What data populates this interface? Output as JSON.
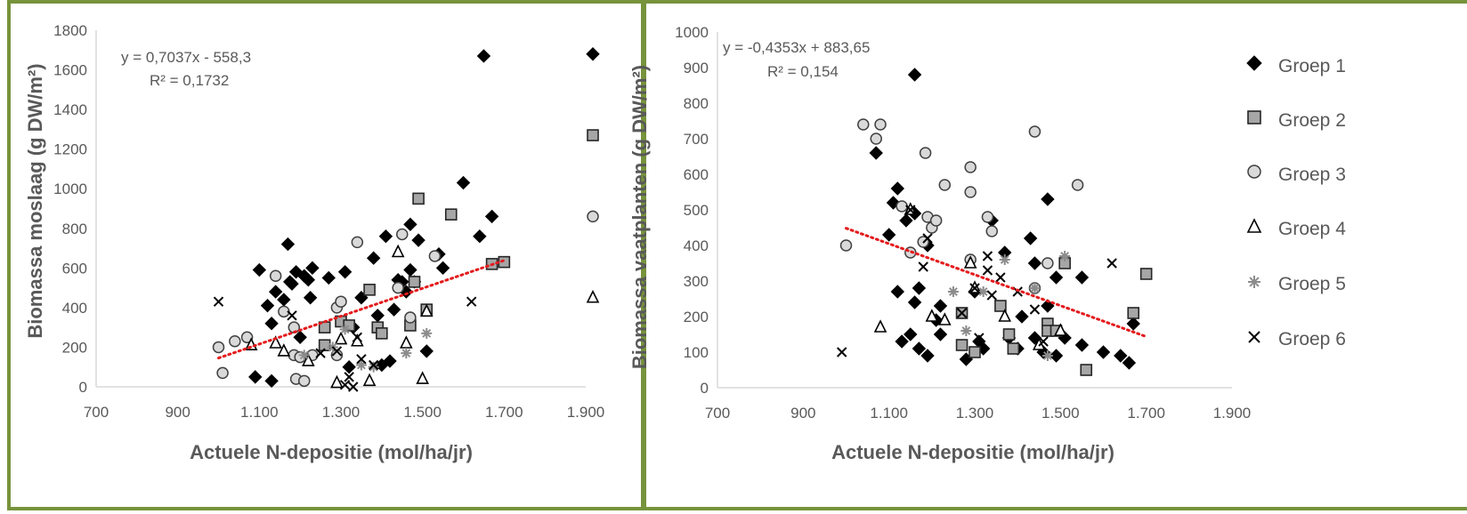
{
  "colors": {
    "panel_border": "#77933C",
    "marker_fill_g1": "#000000",
    "marker_fill_g2": "#a6a6a6",
    "marker_fill_g3": "#d9d9d9",
    "marker_g5": "#8c8c8c",
    "trendline": "#e41a1c",
    "axis": "#d9d9d9",
    "text": "#595959"
  },
  "legend_labels": [
    "Groep 1",
    "Groep 2",
    "Groep 3",
    "Groep 4",
    "Groep 5",
    "Groep 6"
  ],
  "chart_data": [
    {
      "type": "scatter",
      "title": "",
      "xlabel": "Actuele N-depositie (mol/ha/jr)",
      "ylabel": "Biomassa moslaag (g DW/m²)",
      "xlim": [
        700,
        1900
      ],
      "ylim": [
        0,
        1800
      ],
      "xticks": [
        700,
        900,
        1100,
        1300,
        1500,
        1700,
        1900
      ],
      "xtick_labels": [
        "700",
        "900",
        "1.100",
        "1.300",
        "1.500",
        "1.700",
        "1.900"
      ],
      "yticks": [
        0,
        200,
        400,
        600,
        800,
        1000,
        1200,
        1400,
        1600,
        1800
      ],
      "grid": false,
      "legend": "none",
      "trendline": {
        "slope": 0.7037,
        "intercept": -558.3,
        "x_range": [
          1000,
          1700
        ],
        "equation": "y = 0,7037x - 558,3",
        "r2": "R² = 0,1732"
      },
      "series": [
        {
          "name": "Groep 1",
          "marker": "diamond",
          "points": [
            [
              1100,
              590
            ],
            [
              1120,
              410
            ],
            [
              1130,
              320
            ],
            [
              1140,
              480
            ],
            [
              1160,
              440
            ],
            [
              1170,
              720
            ],
            [
              1175,
              530
            ],
            [
              1180,
              520
            ],
            [
              1190,
              580
            ],
            [
              1200,
              250
            ],
            [
              1210,
              560
            ],
            [
              1220,
              540
            ],
            [
              1225,
              450
            ],
            [
              1230,
              600
            ],
            [
              1270,
              550
            ],
            [
              1310,
              580
            ],
            [
              1330,
              300
            ],
            [
              1350,
              450
            ],
            [
              1380,
              650
            ],
            [
              1390,
              360
            ],
            [
              1410,
              760
            ],
            [
              1430,
              390
            ],
            [
              1440,
              540
            ],
            [
              1450,
              530
            ],
            [
              1460,
              480
            ],
            [
              1470,
              590
            ],
            [
              1470,
              820
            ],
            [
              1480,
              530
            ],
            [
              1490,
              740
            ],
            [
              1510,
              180
            ],
            [
              1540,
              670
            ],
            [
              1550,
              600
            ],
            [
              1600,
              1030
            ],
            [
              1640,
              760
            ],
            [
              1650,
              1670
            ],
            [
              1670,
              860
            ],
            [
              1320,
              100
            ],
            [
              1400,
              110
            ],
            [
              1420,
              130
            ],
            [
              1130,
              30
            ],
            [
              1090,
              50
            ]
          ]
        },
        {
          "name": "Groep 2",
          "marker": "square",
          "points": [
            [
              1260,
              300
            ],
            [
              1260,
              210
            ],
            [
              1300,
              330
            ],
            [
              1320,
              310
            ],
            [
              1370,
              490
            ],
            [
              1390,
              300
            ],
            [
              1400,
              270
            ],
            [
              1470,
              310
            ],
            [
              1480,
              530
            ],
            [
              1490,
              950
            ],
            [
              1510,
              390
            ],
            [
              1570,
              870
            ],
            [
              1670,
              620
            ],
            [
              1700,
              630
            ]
          ]
        },
        {
          "name": "Groep 3",
          "marker": "circle",
          "points": [
            [
              1000,
              200
            ],
            [
              1040,
              230
            ],
            [
              1070,
              250
            ],
            [
              1010,
              70
            ],
            [
              1140,
              560
            ],
            [
              1160,
              380
            ],
            [
              1185,
              300
            ],
            [
              1185,
              160
            ],
            [
              1190,
              40
            ],
            [
              1200,
              150
            ],
            [
              1210,
              30
            ],
            [
              1230,
              160
            ],
            [
              1290,
              400
            ],
            [
              1300,
              430
            ],
            [
              1290,
              160
            ],
            [
              1340,
              730
            ],
            [
              1440,
              500
            ],
            [
              1450,
              770
            ],
            [
              1470,
              350
            ],
            [
              1530,
              660
            ]
          ]
        },
        {
          "name": "Groep 4",
          "marker": "triangle",
          "points": [
            [
              1080,
              210
            ],
            [
              1140,
              220
            ],
            [
              1160,
              180
            ],
            [
              1220,
              130
            ],
            [
              1290,
              20
            ],
            [
              1300,
              240
            ],
            [
              1340,
              230
            ],
            [
              1370,
              30
            ],
            [
              1440,
              680
            ],
            [
              1460,
              220
            ],
            [
              1500,
              40
            ],
            [
              1510,
              380
            ]
          ]
        },
        {
          "name": "Groep 5",
          "marker": "asterisk",
          "points": [
            [
              1210,
              160
            ],
            [
              1280,
              200
            ],
            [
              1310,
              290
            ],
            [
              1350,
              110
            ],
            [
              1380,
              100
            ],
            [
              1460,
              170
            ],
            [
              1510,
              270
            ]
          ]
        },
        {
          "name": "Groep 6",
          "marker": "x",
          "points": [
            [
              1000,
              430
            ],
            [
              1180,
              360
            ],
            [
              1250,
              170
            ],
            [
              1290,
              180
            ],
            [
              1310,
              10
            ],
            [
              1320,
              50
            ],
            [
              1330,
              0
            ],
            [
              1340,
              250
            ],
            [
              1350,
              140
            ],
            [
              1380,
              110
            ],
            [
              1620,
              430
            ]
          ]
        }
      ],
      "right_edge_markers": [
        {
          "series": "Groep 1",
          "marker": "diamond",
          "y": 1680
        },
        {
          "series": "Groep 2",
          "marker": "square",
          "y": 1270
        },
        {
          "series": "Groep 3",
          "marker": "circle",
          "y": 860
        },
        {
          "series": "Groep 4",
          "marker": "triangle",
          "y": 450
        }
      ]
    },
    {
      "type": "scatter",
      "title": "",
      "xlabel": "Actuele N-depositie (mol/ha/jr)",
      "ylabel": "Biomassa vaatplanten (g DW/m²)",
      "xlim": [
        700,
        1900
      ],
      "ylim": [
        0,
        1000
      ],
      "xticks": [
        700,
        900,
        1100,
        1300,
        1500,
        1700,
        1900
      ],
      "xtick_labels": [
        "700",
        "900",
        "1.100",
        "1.300",
        "1.500",
        "1.700",
        "1.900"
      ],
      "yticks": [
        0,
        100,
        200,
        300,
        400,
        500,
        600,
        700,
        800,
        900,
        1000
      ],
      "grid": false,
      "legend": "right",
      "trendline": {
        "slope": -0.4353,
        "intercept": 883.65,
        "x_range": [
          1000,
          1700
        ],
        "equation": "y = -0,4353x + 883,65",
        "r2": "R² = 0,154"
      },
      "series": [
        {
          "name": "Groep 1",
          "marker": "diamond",
          "points": [
            [
              1070,
              660
            ],
            [
              1100,
              430
            ],
            [
              1110,
              520
            ],
            [
              1120,
              560
            ],
            [
              1120,
              270
            ],
            [
              1130,
              130
            ],
            [
              1140,
              470
            ],
            [
              1150,
              150
            ],
            [
              1160,
              880
            ],
            [
              1160,
              490
            ],
            [
              1160,
              240
            ],
            [
              1170,
              110
            ],
            [
              1170,
              280
            ],
            [
              1190,
              90
            ],
            [
              1190,
              400
            ],
            [
              1210,
              190
            ],
            [
              1220,
              230
            ],
            [
              1220,
              150
            ],
            [
              1280,
              80
            ],
            [
              1300,
              270
            ],
            [
              1310,
              130
            ],
            [
              1320,
              110
            ],
            [
              1340,
              470
            ],
            [
              1370,
              380
            ],
            [
              1380,
              140
            ],
            [
              1400,
              110
            ],
            [
              1410,
              200
            ],
            [
              1430,
              420
            ],
            [
              1440,
              350
            ],
            [
              1440,
              140
            ],
            [
              1460,
              100
            ],
            [
              1470,
              230
            ],
            [
              1470,
              530
            ],
            [
              1490,
              90
            ],
            [
              1490,
              310
            ],
            [
              1510,
              140
            ],
            [
              1550,
              310
            ],
            [
              1550,
              120
            ],
            [
              1600,
              100
            ],
            [
              1640,
              90
            ],
            [
              1660,
              70
            ],
            [
              1670,
              180
            ]
          ]
        },
        {
          "name": "Groep 2",
          "marker": "square",
          "points": [
            [
              1270,
              120
            ],
            [
              1270,
              210
            ],
            [
              1300,
              100
            ],
            [
              1360,
              230
            ],
            [
              1380,
              150
            ],
            [
              1390,
              110
            ],
            [
              1470,
              180
            ],
            [
              1470,
              160
            ],
            [
              1490,
              160
            ],
            [
              1510,
              350
            ],
            [
              1560,
              50
            ],
            [
              1670,
              210
            ],
            [
              1700,
              320
            ]
          ]
        },
        {
          "name": "Groep 3",
          "marker": "circle",
          "points": [
            [
              1000,
              400
            ],
            [
              1040,
              740
            ],
            [
              1070,
              700
            ],
            [
              1080,
              740
            ],
            [
              1130,
              510
            ],
            [
              1150,
              380
            ],
            [
              1180,
              410
            ],
            [
              1185,
              660
            ],
            [
              1190,
              480
            ],
            [
              1200,
              450
            ],
            [
              1210,
              470
            ],
            [
              1230,
              570
            ],
            [
              1290,
              620
            ],
            [
              1290,
              550
            ],
            [
              1290,
              360
            ],
            [
              1330,
              480
            ],
            [
              1340,
              440
            ],
            [
              1440,
              720
            ],
            [
              1440,
              280
            ],
            [
              1470,
              350
            ],
            [
              1540,
              570
            ]
          ]
        },
        {
          "name": "Groep 4",
          "marker": "triangle",
          "points": [
            [
              1080,
              170
            ],
            [
              1150,
              500
            ],
            [
              1200,
              200
            ],
            [
              1230,
              190
            ],
            [
              1290,
              350
            ],
            [
              1300,
              280
            ],
            [
              1370,
              200
            ],
            [
              1450,
              120
            ],
            [
              1500,
              160
            ]
          ]
        },
        {
          "name": "Groep 5",
          "marker": "asterisk",
          "points": [
            [
              1250,
              270
            ],
            [
              1280,
              160
            ],
            [
              1320,
              270
            ],
            [
              1370,
              360
            ],
            [
              1440,
              280
            ],
            [
              1470,
              90
            ],
            [
              1510,
              370
            ]
          ]
        },
        {
          "name": "Groep 6",
          "marker": "x",
          "points": [
            [
              990,
              100
            ],
            [
              1150,
              500
            ],
            [
              1180,
              340
            ],
            [
              1190,
              420
            ],
            [
              1270,
              210
            ],
            [
              1300,
              280
            ],
            [
              1310,
              140
            ],
            [
              1330,
              370
            ],
            [
              1330,
              330
            ],
            [
              1340,
              260
            ],
            [
              1360,
              310
            ],
            [
              1400,
              270
            ],
            [
              1440,
              220
            ],
            [
              1460,
              130
            ],
            [
              1620,
              350
            ]
          ]
        }
      ]
    }
  ]
}
